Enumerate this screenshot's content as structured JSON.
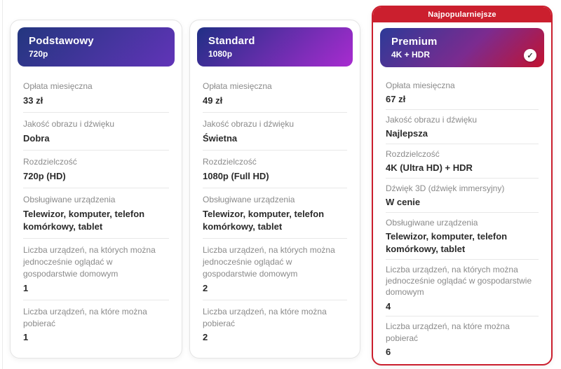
{
  "icons": {
    "selected_check": "✓"
  },
  "colors": {
    "badge_red": "#cb1f2e",
    "premium_border_red": "#cb1f2e",
    "basic_gradient_start": "#23367f",
    "basic_gradient_end": "#6134b8",
    "standard_gradient_start": "#202f85",
    "standard_gradient_end": "#a82cd0",
    "premium_gradient_start": "#2d3a98",
    "premium_gradient_end": "#c21330",
    "header_text": "#ffffff",
    "label_gray": "#8a8a8a",
    "value_dark": "#2b2b2b"
  },
  "cards": [
    {
      "id": "podstawowy",
      "title": "Podstawowy",
      "subtitle": "720p",
      "selected": false,
      "rows": [
        {
          "label": "Opłata miesięczna",
          "value": "33 zł"
        },
        {
          "label": "Jakość obrazu i dźwięku",
          "value": "Dobra"
        },
        {
          "label": "Rozdzielczość",
          "value": "720p (HD)"
        },
        {
          "label": "Obsługiwane urządzenia",
          "value": "Telewizor, komputer, telefon komórkowy, tablet"
        },
        {
          "label": "Liczba urządzeń, na których można jednocześnie oglądać w gospodarstwie domowym",
          "value": "1"
        },
        {
          "label": "Liczba urządzeń, na które można pobierać",
          "value": "1"
        }
      ]
    },
    {
      "id": "standard",
      "title": "Standard",
      "subtitle": "1080p",
      "selected": false,
      "rows": [
        {
          "label": "Opłata miesięczna",
          "value": "49 zł"
        },
        {
          "label": "Jakość obrazu i dźwięku",
          "value": "Świetna"
        },
        {
          "label": "Rozdzielczość",
          "value": "1080p (Full HD)"
        },
        {
          "label": "Obsługiwane urządzenia",
          "value": "Telewizor, komputer, telefon komórkowy, tablet"
        },
        {
          "label": "Liczba urządzeń, na których można jednocześnie oglądać w gospodarstwie domowym",
          "value": "2"
        },
        {
          "label": "Liczba urządzeń, na które można pobierać",
          "value": "2"
        }
      ]
    },
    {
      "id": "premium",
      "title": "Premium",
      "subtitle": "4K + HDR",
      "badge": "Najpopularniejsze",
      "selected": true,
      "rows": [
        {
          "label": "Opłata miesięczna",
          "value": "67 zł"
        },
        {
          "label": "Jakość obrazu i dźwięku",
          "value": "Najlepsza"
        },
        {
          "label": "Rozdzielczość",
          "value": "4K (Ultra HD) + HDR"
        },
        {
          "label": "Dźwięk 3D (dźwięk immersyjny)",
          "value": "W cenie"
        },
        {
          "label": "Obsługiwane urządzenia",
          "value": "Telewizor, komputer, telefon komórkowy, tablet"
        },
        {
          "label": "Liczba urządzeń, na których można jednocześnie oglądać w gospodarstwie domowym",
          "value": "4"
        },
        {
          "label": "Liczba urządzeń, na które można pobierać",
          "value": "6"
        }
      ]
    }
  ]
}
